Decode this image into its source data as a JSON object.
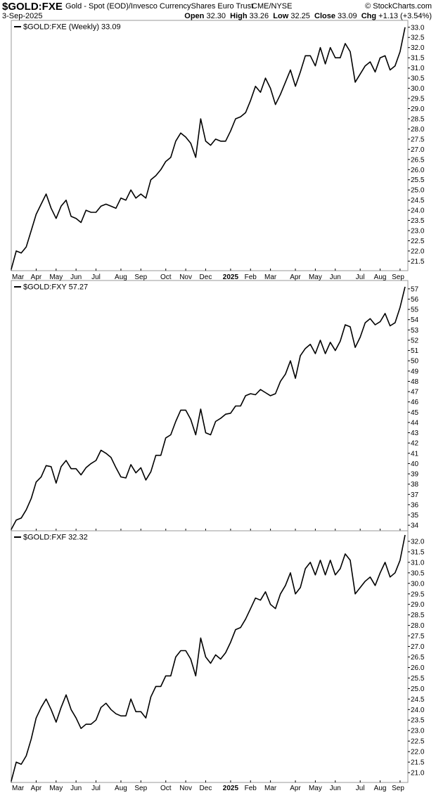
{
  "header": {
    "symbol": "$GOLD:FXE",
    "description": "Gold - Spot (EOD)/Invesco CurrencyShares Euro Trust",
    "exchange": "CME/NYSE",
    "logo": "© StockCharts.com",
    "date": "3-Sep-2025",
    "open_label": "Open",
    "open": "32.30",
    "high_label": "High",
    "high": "33.26",
    "low_label": "Low",
    "low": "32.25",
    "close_label": "Close",
    "close": "33.09",
    "chg_label": "Chg",
    "chg": "+1.13 (+3.54%)"
  },
  "chart_data": [
    {
      "type": "line",
      "legend": "$GOLD:FXE (Weekly) 33.09",
      "x_labels": [
        "Mar",
        "Apr",
        "May",
        "Jun",
        "Jul",
        "Aug",
        "Sep",
        "Oct",
        "Nov",
        "Dec",
        "2025",
        "Feb",
        "Mar",
        "Apr",
        "May",
        "Jun",
        "Jul",
        "Aug",
        "Sep"
      ],
      "x_label_weeks": [
        0,
        5,
        9,
        13,
        17,
        22,
        26,
        31,
        35,
        39,
        44,
        48,
        52,
        57,
        61,
        65,
        70,
        74,
        78
      ],
      "y_ticks": [
        21.5,
        22.0,
        22.5,
        23.0,
        23.5,
        24.0,
        24.5,
        25.0,
        25.5,
        26.0,
        26.5,
        27.0,
        27.5,
        28.0,
        28.5,
        29.0,
        29.5,
        30.0,
        30.5,
        31.0,
        31.5,
        32.0,
        32.5,
        33.0
      ],
      "ylim": [
        21.1,
        33.2
      ],
      "values": [
        21.1,
        22.0,
        21.9,
        22.2,
        23.0,
        23.8,
        24.3,
        24.8,
        24.1,
        23.6,
        24.2,
        24.5,
        23.7,
        23.6,
        23.4,
        24.0,
        23.9,
        23.9,
        24.2,
        24.3,
        24.2,
        24.1,
        24.6,
        24.5,
        25.0,
        24.6,
        24.8,
        24.6,
        25.5,
        25.7,
        26.0,
        26.4,
        26.6,
        27.4,
        27.8,
        27.6,
        27.3,
        26.6,
        28.5,
        27.4,
        27.2,
        27.5,
        27.4,
        27.4,
        27.9,
        28.5,
        28.6,
        28.8,
        29.4,
        30.1,
        29.8,
        30.5,
        30.0,
        29.2,
        29.7,
        30.3,
        30.9,
        30.1,
        30.8,
        31.6,
        31.6,
        31.1,
        32.0,
        31.2,
        32.0,
        31.5,
        31.5,
        32.2,
        31.8,
        30.3,
        30.7,
        31.1,
        31.3,
        30.8,
        31.5,
        31.6,
        30.9,
        31.1,
        31.8,
        33.0
      ]
    },
    {
      "type": "line",
      "legend": "$GOLD:FXY 57.27",
      "y_ticks": [
        34,
        35,
        36,
        37,
        38,
        39,
        40,
        41,
        42,
        43,
        44,
        45,
        46,
        47,
        48,
        49,
        50,
        51,
        52,
        53,
        54,
        55,
        56,
        57
      ],
      "ylim": [
        33.6,
        57.4
      ],
      "values": [
        33.6,
        34.5,
        34.7,
        35.5,
        36.6,
        38.2,
        38.7,
        39.8,
        39.7,
        38.1,
        39.7,
        40.3,
        39.5,
        39.5,
        38.9,
        39.6,
        40.0,
        40.3,
        41.3,
        41.0,
        40.6,
        39.6,
        38.7,
        38.6,
        39.9,
        39.1,
        39.6,
        38.4,
        39.2,
        40.8,
        40.8,
        42.5,
        42.8,
        44.1,
        45.2,
        45.2,
        44.3,
        42.8,
        45.3,
        43.0,
        42.8,
        44.1,
        44.4,
        44.8,
        44.9,
        45.6,
        45.6,
        46.6,
        46.8,
        46.7,
        47.2,
        46.9,
        46.6,
        46.8,
        48.0,
        48.7,
        50.0,
        48.3,
        50.5,
        51.2,
        51.6,
        50.7,
        52.0,
        50.7,
        51.8,
        51.0,
        51.9,
        53.5,
        53.3,
        51.3,
        52.3,
        53.7,
        54.1,
        53.5,
        53.8,
        54.6,
        53.4,
        53.7,
        55.2,
        57.2
      ]
    },
    {
      "type": "line",
      "legend": "$GOLD:FXF 32.32",
      "y_ticks": [
        21.0,
        21.5,
        22.0,
        22.5,
        23.0,
        23.5,
        24.0,
        24.5,
        25.0,
        25.5,
        26.0,
        26.5,
        27.0,
        27.5,
        28.0,
        28.5,
        29.0,
        29.5,
        30.0,
        30.5,
        31.0,
        31.5,
        32.0
      ],
      "ylim": [
        20.6,
        32.3
      ],
      "values": [
        20.6,
        21.5,
        21.4,
        21.8,
        22.6,
        23.6,
        24.1,
        24.5,
        24.0,
        23.4,
        24.1,
        24.7,
        24.0,
        23.6,
        23.1,
        23.3,
        23.3,
        23.5,
        24.1,
        24.3,
        24.0,
        23.8,
        23.7,
        23.7,
        24.5,
        23.9,
        23.9,
        23.6,
        24.6,
        25.1,
        25.1,
        25.6,
        25.6,
        26.5,
        26.8,
        26.8,
        26.4,
        25.6,
        27.4,
        26.5,
        26.2,
        26.6,
        26.4,
        26.7,
        27.2,
        27.8,
        27.9,
        28.3,
        28.8,
        29.3,
        29.2,
        29.6,
        29.0,
        28.8,
        29.5,
        29.9,
        30.5,
        29.5,
        29.8,
        30.7,
        31.0,
        30.4,
        31.1,
        30.4,
        31.1,
        30.4,
        30.7,
        31.4,
        31.1,
        29.5,
        29.8,
        30.1,
        30.3,
        29.9,
        30.5,
        31.0,
        30.3,
        30.5,
        31.1,
        32.3
      ]
    }
  ]
}
